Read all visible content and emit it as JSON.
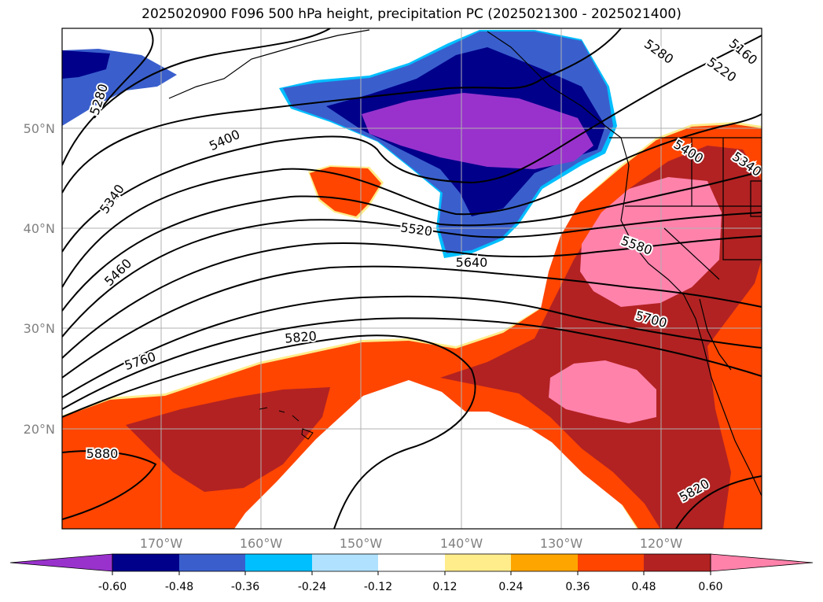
{
  "title": "2025020900 F096 500 hPa height, precipitation PC (2025021300 - 2025021400)",
  "lat_labels": [
    "50°N",
    "40°N",
    "30°N",
    "20°N"
  ],
  "lon_labels": [
    "170°W",
    "160°W",
    "150°W",
    "140°W",
    "130°W",
    "120°W"
  ],
  "contour_labels": {
    "c5280a": "5280",
    "c5280b": "5280",
    "c5220": "5220",
    "c5160": "5160",
    "c5400a": "5400",
    "c5400b": "5400",
    "c5340a": "5340",
    "c5340b": "5340",
    "c5460": "5460",
    "c5520": "5520",
    "c5580": "5580",
    "c5640": "5640",
    "c5700": "5700",
    "c5760": "5760",
    "c5820a": "5820",
    "c5820b": "5820",
    "c5880": "5880"
  },
  "colorbar": {
    "colors": [
      "#9932CC",
      "#00008B",
      "#3A5FCD",
      "#00BFFF",
      "#B0E2FF",
      "#FFFFFF",
      "#FFEC8B",
      "#FFA500",
      "#FF4500",
      "#B22222",
      "#FF82AB"
    ],
    "ticks": [
      "-0.60",
      "-0.48",
      "-0.36",
      "-0.24",
      "-0.12",
      "0.12",
      "0.24",
      "0.36",
      "0.48",
      "0.60"
    ]
  }
}
